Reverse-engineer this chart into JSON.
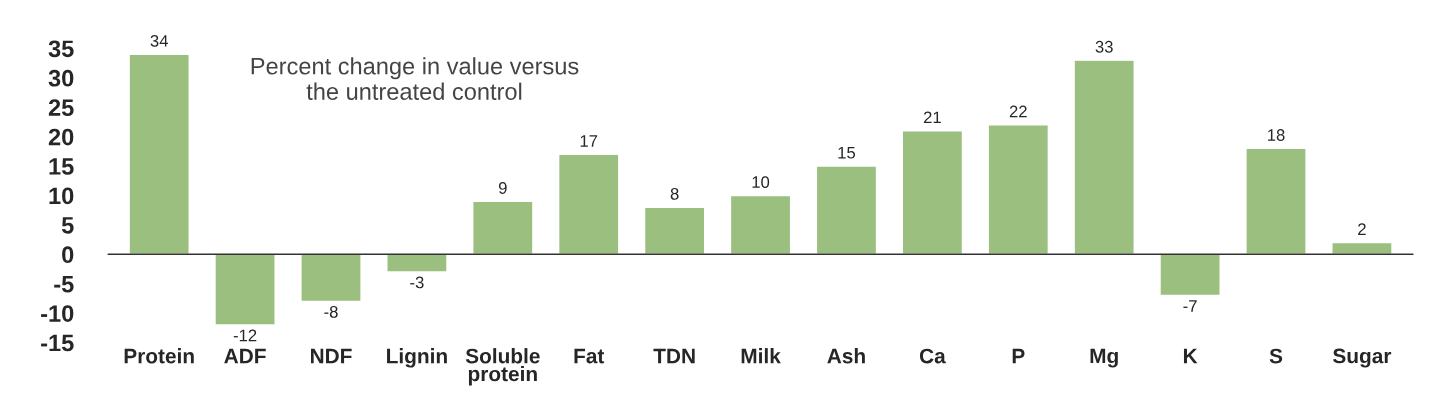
{
  "chart_data": {
    "type": "bar",
    "categories": [
      "Protein",
      "ADF",
      "NDF",
      "Lignin",
      "Soluble\nprotein",
      "Fat",
      "TDN",
      "Milk",
      "Ash",
      "Ca",
      "P",
      "Mg",
      "K",
      "S",
      "Sugar"
    ],
    "values": [
      34,
      -12,
      -8,
      -3,
      9,
      17,
      8,
      10,
      15,
      21,
      22,
      33,
      -7,
      18,
      2
    ],
    "color": "#9bbf7f",
    "data_labels": true,
    "annotations": [
      "Percent change in value versus\nthe untreated control"
    ],
    "ylim": [
      -15,
      35
    ],
    "yticks": [
      35,
      30,
      25,
      20,
      15,
      10,
      5,
      0,
      {
        "value": -5,
        "label": "-5"
      },
      {
        "value": -10,
        "label": "-10"
      },
      {
        "value": -15,
        "label": "-15"
      }
    ]
  }
}
